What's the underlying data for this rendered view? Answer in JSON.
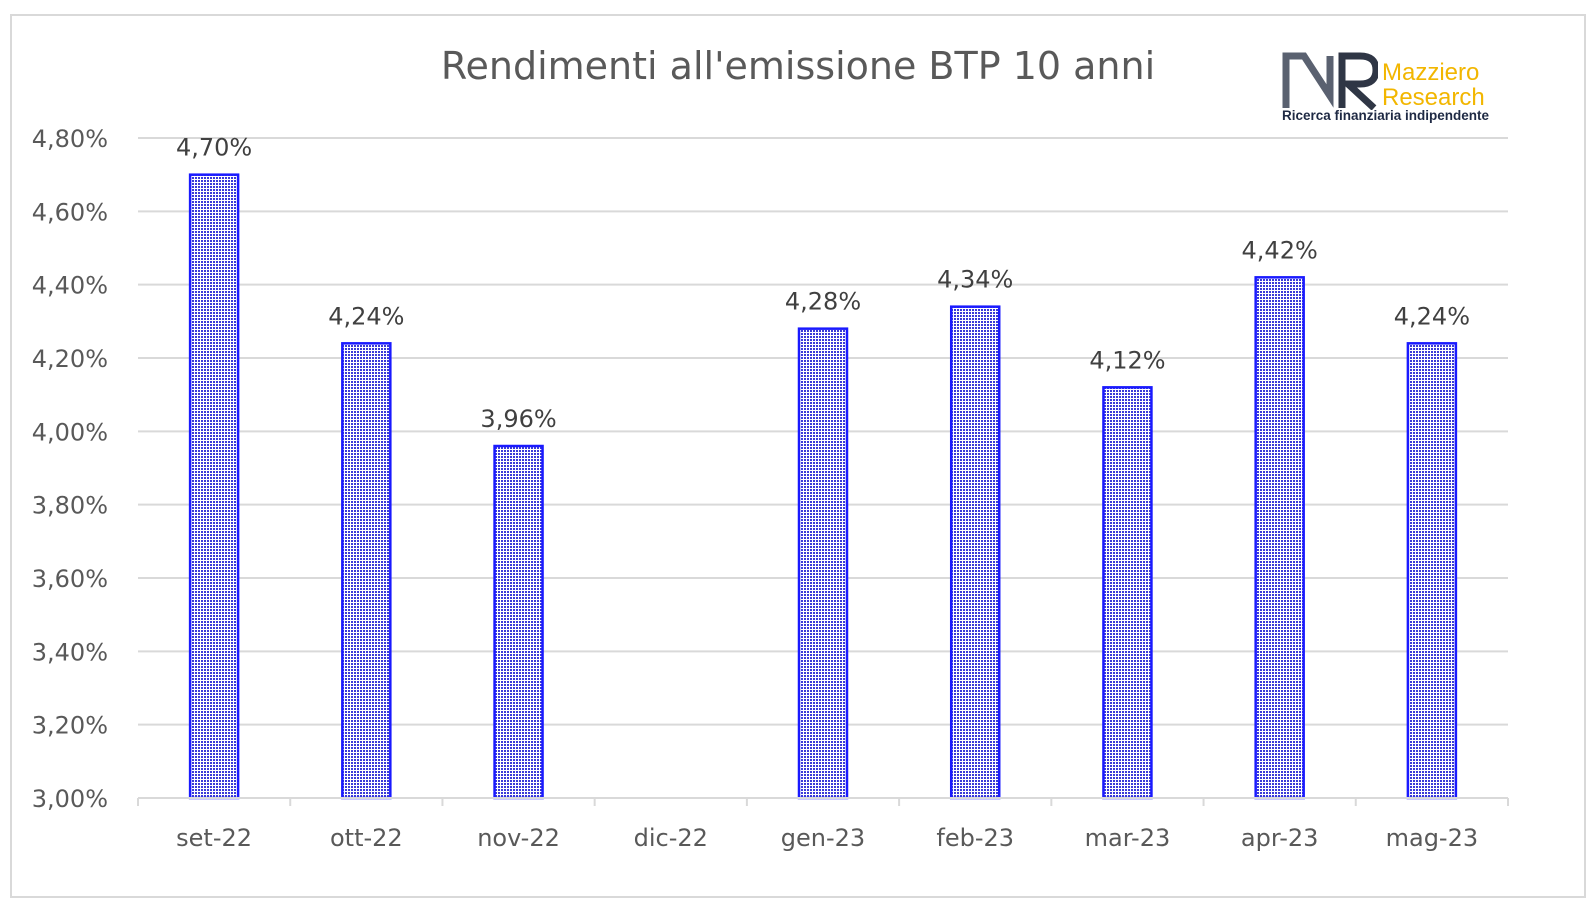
{
  "chart_data": {
    "type": "bar",
    "title": "Rendimenti all'emissione BTP 10 anni",
    "categories": [
      "set-22",
      "ott-22",
      "nov-22",
      "dic-22",
      "gen-23",
      "feb-23",
      "mar-23",
      "apr-23",
      "mag-23"
    ],
    "values": [
      4.7,
      4.24,
      3.96,
      null,
      4.28,
      4.34,
      4.12,
      4.42,
      4.24
    ],
    "data_labels": [
      "4,70%",
      "4,24%",
      "3,96%",
      "",
      "4,28%",
      "4,34%",
      "4,12%",
      "4,42%",
      "4,24%"
    ],
    "ylim": [
      3.0,
      4.8
    ],
    "yticks": [
      3.0,
      3.2,
      3.4,
      3.6,
      3.8,
      4.0,
      4.2,
      4.4,
      4.6,
      4.8
    ],
    "ytick_labels": [
      "3,00%",
      "3,20%",
      "3,40%",
      "3,60%",
      "3,80%",
      "4,00%",
      "4,20%",
      "4,40%",
      "4,60%",
      "4,80%"
    ],
    "xlabel": "",
    "ylabel": "",
    "grid": true,
    "legend": "none"
  },
  "colors": {
    "bar_stroke": "#1a1aff",
    "bar_fill_a": "#3a3ad8",
    "bar_fill_b": "#ffffff",
    "grid": "#d9d9d9",
    "axis_text": "#595959",
    "label_text": "#404040"
  },
  "logo": {
    "mark": "MR",
    "name_line1": "Mazziero",
    "name_line2": "Research",
    "tagline": "Ricerca finanziaria indipendente"
  }
}
